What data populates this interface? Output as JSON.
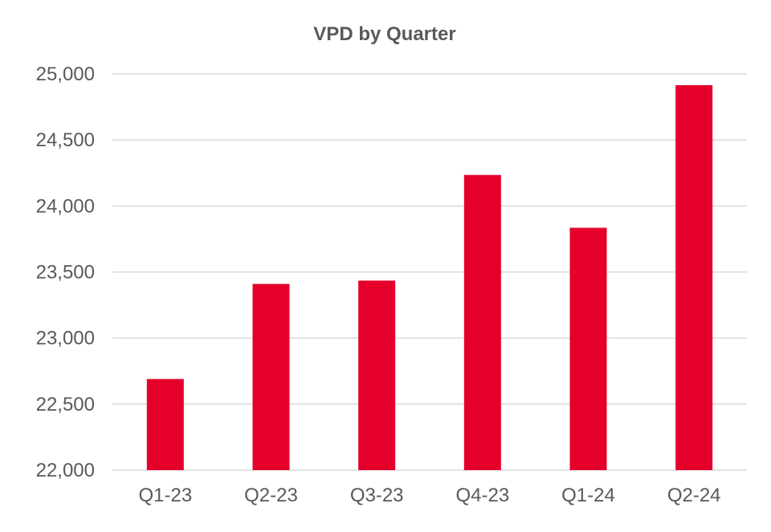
{
  "chart_data": {
    "type": "bar",
    "title": "VPD by Quarter",
    "xlabel": "",
    "ylabel": "",
    "categories": [
      "Q1-23",
      "Q2-23",
      "Q3-23",
      "Q4-23",
      "Q1-24",
      "Q2-24"
    ],
    "values": [
      22690,
      23410,
      23435,
      24235,
      23835,
      24915
    ],
    "ylim": [
      22000,
      25000
    ],
    "yticks": [
      22000,
      22500,
      23000,
      23500,
      24000,
      24500,
      25000
    ],
    "ytick_labels": [
      "22,000",
      "22,500",
      "23,000",
      "23,500",
      "24,000",
      "24,500",
      "25,000"
    ],
    "grid": true,
    "legend": "none",
    "bar_color": "#e4002b",
    "grid_color": "#d9d9d9",
    "text_color": "#595959"
  }
}
